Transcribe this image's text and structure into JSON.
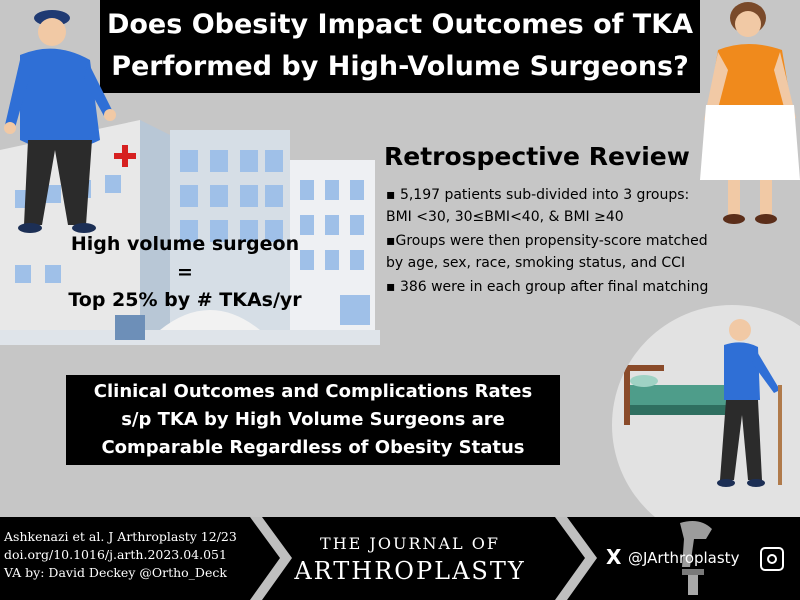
{
  "header": {
    "title_line1": "Does Obesity Impact Outcomes of TKA",
    "title_line2": "Performed by High-Volume Surgeons?"
  },
  "definition": {
    "line1": "High volume surgeon =",
    "line2": "Top 25% by # TKAs/yr"
  },
  "review": {
    "title": "Retrospective Review",
    "bullets": [
      "▪ 5,197 patients sub-divided into 3 groups: BMI <30, 30≤BMI<40, & BMI ≥40",
      "▪Groups were then propensity-score matched by age, sex, race, smoking status, and CCI",
      "▪  386 were in each group after final matching"
    ]
  },
  "conclusion": {
    "line1": "Clinical Outcomes and Complications Rates",
    "line2": "s/p TKA by High Volume Surgeons are",
    "line3": "Comparable Regardless of Obesity Status"
  },
  "footer": {
    "citation_line1": "Ashkenazi et al. J Arthroplasty 12/23",
    "citation_line2": "doi.org/10.1016/j.arth.2023.04.051",
    "citation_line3": "VA by: David Deckey @Ortho_Deck",
    "journal_the": "THE JOURNAL OF",
    "journal_name": "ARTHROPLASTY",
    "x_logo": "X",
    "handle": "@JArthroplasty"
  },
  "colors": {
    "background": "#c6c6c6",
    "banner": "#000000",
    "shirt_blue": "#2f6fd6",
    "orange_top": "#f08a1c"
  },
  "icons": [
    "hospital-illustration",
    "obese-man-illustration",
    "obese-woman-illustration",
    "elderly-man-cane-illustration",
    "bed-icon",
    "knee-implant-icon",
    "x-logo-icon",
    "instagram-icon"
  ]
}
